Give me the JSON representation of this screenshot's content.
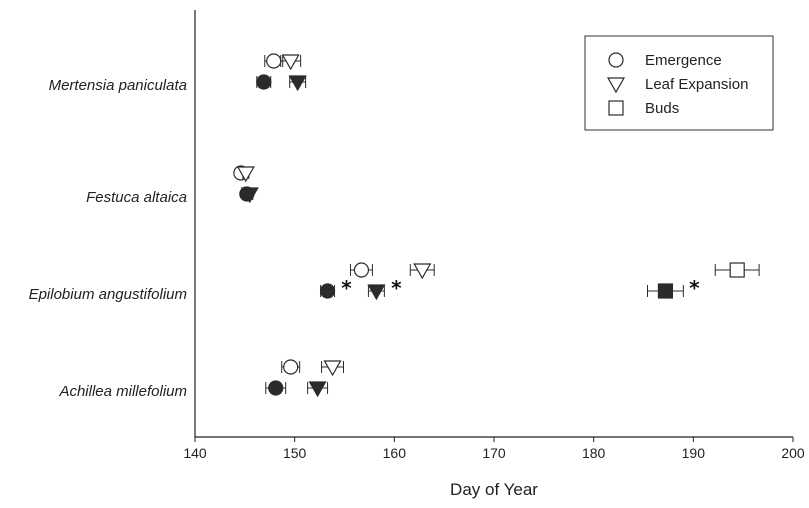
{
  "chart_data": {
    "type": "scatter",
    "title": "",
    "xlabel": "Day of Year",
    "ylabel": "",
    "xlim": [
      140,
      200
    ],
    "xticks": [
      140,
      150,
      160,
      170,
      180,
      190,
      200
    ],
    "grid": false,
    "legend_position": "top-right",
    "categories": [
      "Mertensia paniculata",
      "Festuca altaica",
      "Epilobium angustifolium",
      "Achillea millefolium"
    ],
    "series": [
      {
        "name": "Emergence",
        "marker": "circle"
      },
      {
        "name": "Leaf Expansion",
        "marker": "triangle-down"
      },
      {
        "name": "Buds",
        "marker": "square"
      }
    ],
    "points": [
      {
        "category": "Mertensia paniculata",
        "series": "Emergence",
        "fill": "open",
        "x": 147.9,
        "err": 0.9
      },
      {
        "category": "Mertensia paniculata",
        "series": "Leaf Expansion",
        "fill": "open",
        "x": 149.6,
        "err": 1.0
      },
      {
        "category": "Mertensia paniculata",
        "series": "Emergence",
        "fill": "filled",
        "x": 146.9,
        "err": 0.7
      },
      {
        "category": "Mertensia paniculata",
        "series": "Leaf Expansion",
        "fill": "filled",
        "x": 150.3,
        "err": 0.8
      },
      {
        "category": "Festuca altaica",
        "series": "Emergence",
        "fill": "open",
        "x": 144.6,
        "err": 0.2
      },
      {
        "category": "Festuca altaica",
        "series": "Leaf Expansion",
        "fill": "open",
        "x": 145.1,
        "err": 0.3
      },
      {
        "category": "Festuca altaica",
        "series": "Emergence",
        "fill": "filled",
        "x": 145.2,
        "err": 0.2
      },
      {
        "category": "Festuca altaica",
        "series": "Leaf Expansion",
        "fill": "filled",
        "x": 145.5,
        "err": 0.3
      },
      {
        "category": "Epilobium angustifolium",
        "series": "Emergence",
        "fill": "open",
        "x": 156.7,
        "err": 1.1
      },
      {
        "category": "Epilobium angustifolium",
        "series": "Leaf Expansion",
        "fill": "open",
        "x": 162.8,
        "err": 1.2
      },
      {
        "category": "Epilobium angustifolium",
        "series": "Buds",
        "fill": "open",
        "x": 194.4,
        "err": 2.2
      },
      {
        "category": "Epilobium angustifolium",
        "series": "Emergence",
        "fill": "filled",
        "x": 153.3,
        "err": 0.7
      },
      {
        "category": "Epilobium angustifolium",
        "series": "Leaf Expansion",
        "fill": "filled",
        "x": 158.2,
        "err": 0.8
      },
      {
        "category": "Epilobium angustifolium",
        "series": "Buds",
        "fill": "filled",
        "x": 187.2,
        "err": 1.8
      },
      {
        "category": "Achillea millefolium",
        "series": "Emergence",
        "fill": "open",
        "x": 149.6,
        "err": 0.9
      },
      {
        "category": "Achillea millefolium",
        "series": "Leaf Expansion",
        "fill": "open",
        "x": 153.8,
        "err": 1.1
      },
      {
        "category": "Achillea millefolium",
        "series": "Emergence",
        "fill": "filled",
        "x": 148.1,
        "err": 1.0
      },
      {
        "category": "Achillea millefolium",
        "series": "Leaf Expansion",
        "fill": "filled",
        "x": 152.3,
        "err": 1.0
      }
    ],
    "annotations": [
      {
        "text": "*",
        "category": "Epilobium angustifolium",
        "x": 155.2
      },
      {
        "text": "*",
        "category": "Epilobium angustifolium",
        "x": 160.2
      },
      {
        "text": "*",
        "category": "Epilobium angustifolium",
        "x": 190.1
      }
    ]
  }
}
